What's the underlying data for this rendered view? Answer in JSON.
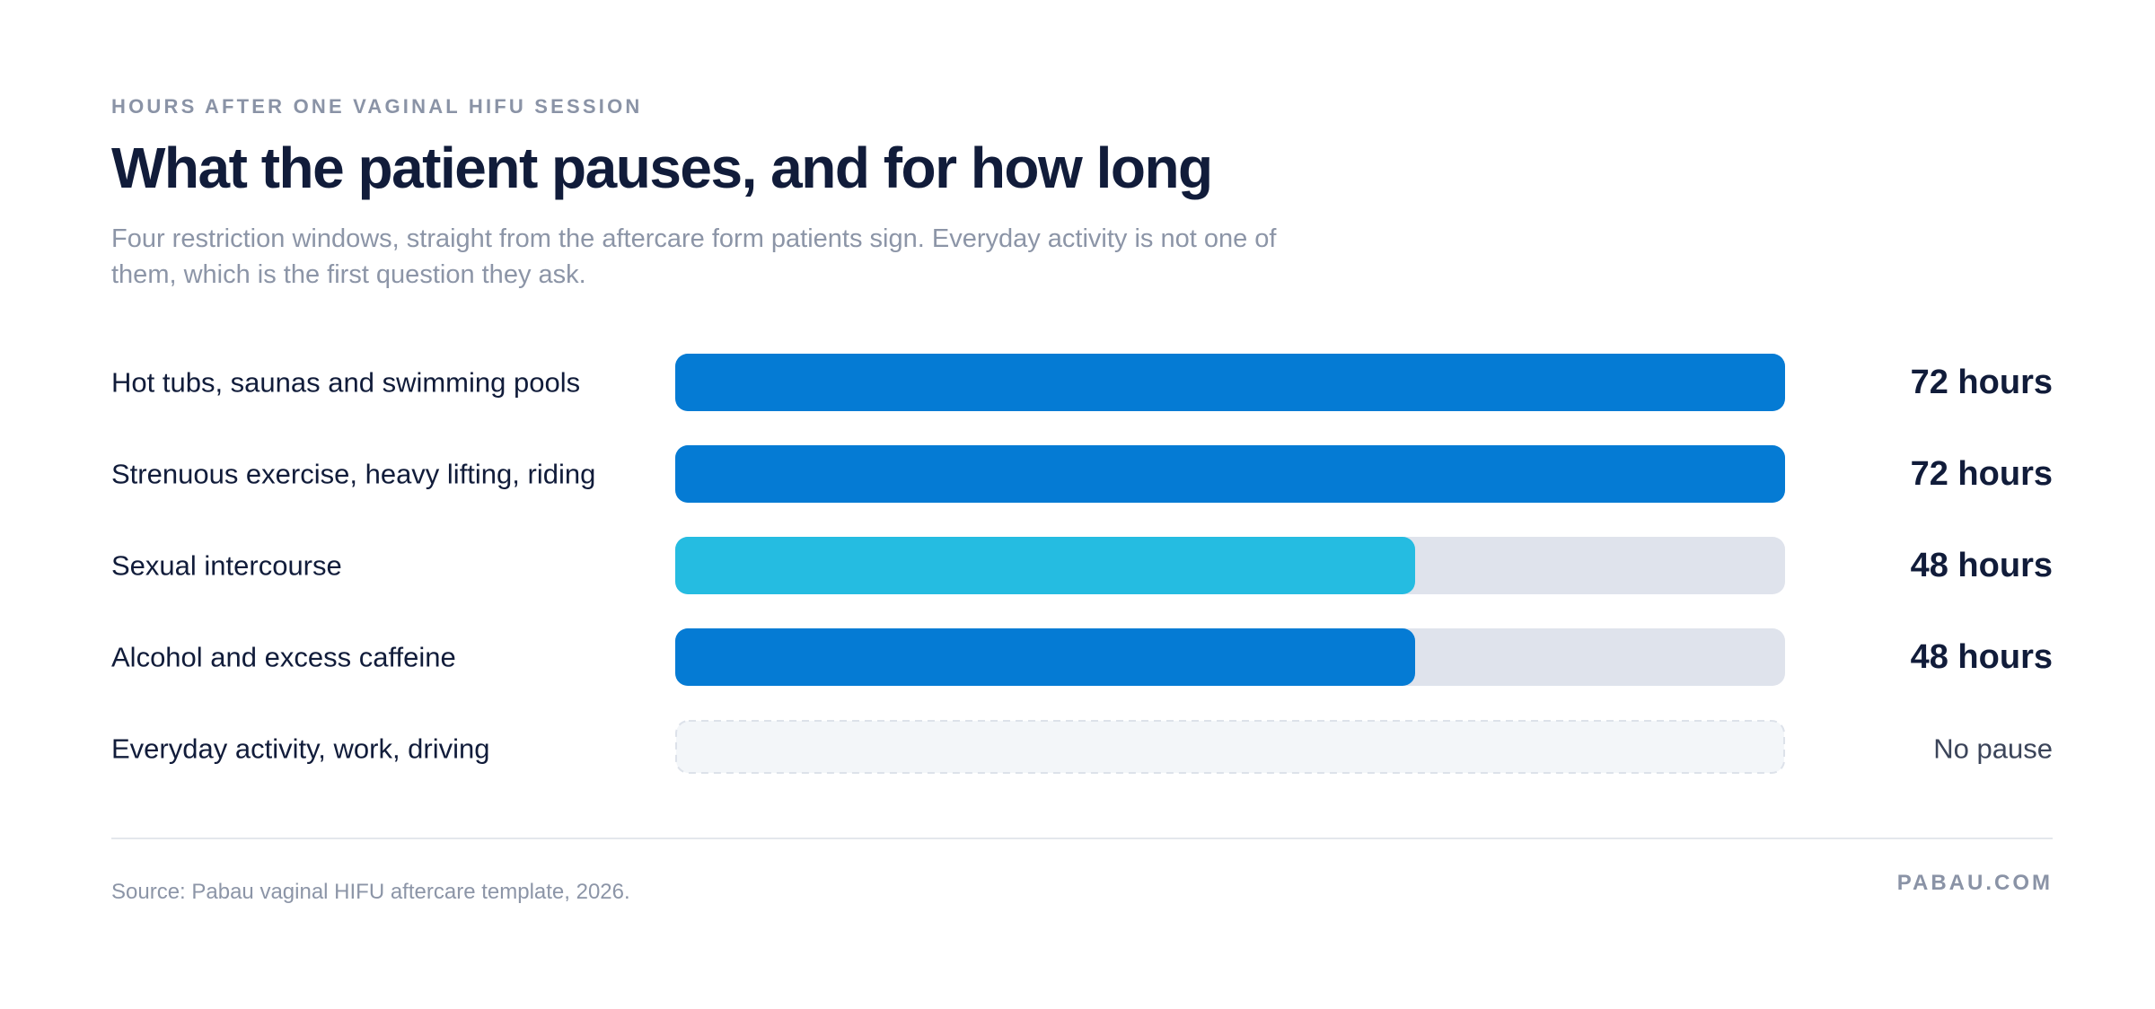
{
  "header": {
    "eyebrow": "HOURS AFTER ONE VAGINAL HIFU SESSION",
    "title": "What the patient pauses, and for how long",
    "subtitle": "Four restriction windows, straight from the aftercare form patients sign. Everyday activity is not one of them, which is the first question they ask."
  },
  "footer": {
    "source": "Source: Pabau vaginal HIFU aftercare template, 2026.",
    "brand": "PABAU.COM"
  },
  "colors": {
    "primary_bar": "#057bd4",
    "accent_bar": "#25bce1",
    "track": "#dfe3ec",
    "empty_track": "#f3f6f9",
    "empty_border": "#dde2ea"
  },
  "chart_data": {
    "type": "bar",
    "orientation": "horizontal",
    "xlim": [
      0,
      72
    ],
    "unit": "hours",
    "categories": [
      "Hot tubs, saunas and swimming pools",
      "Strenuous exercise, heavy lifting, riding",
      "Sexual intercourse",
      "Alcohol and excess caffeine",
      "Everyday activity, work, driving"
    ],
    "values": [
      72,
      72,
      48,
      48,
      0
    ],
    "value_labels": [
      "72 hours",
      "72 hours",
      "48 hours",
      "48 hours",
      "No pause"
    ],
    "bar_colors": [
      "#057bd4",
      "#057bd4",
      "#25bce1",
      "#057bd4",
      null
    ]
  }
}
